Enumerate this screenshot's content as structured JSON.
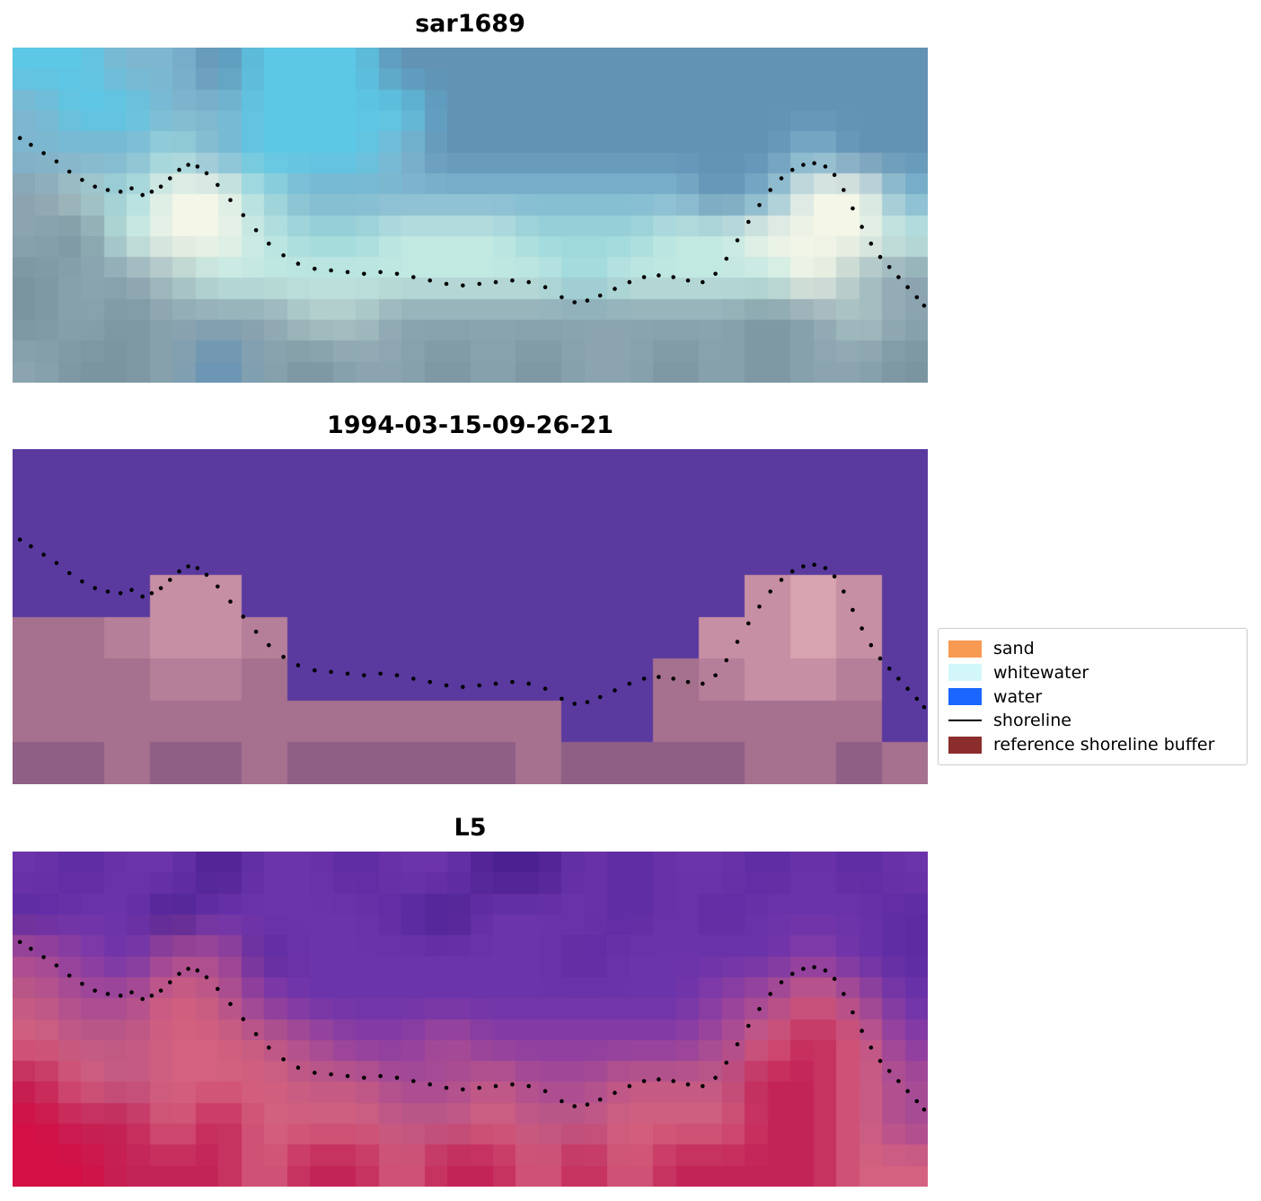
{
  "chart_data": [
    {
      "type": "heatmap",
      "title": "sar1689",
      "description": "SAR satellite image panel with dotted detected shoreline",
      "cols": 20,
      "rows": 8,
      "smooth": true,
      "palette": {
        "a": "#6292b4",
        "b": "#7fb6cf",
        "c": "#5cc8e6",
        "d": "#9ed8dc",
        "e": "#c2e8e2",
        "f": "#f4f6e8",
        "g": "#8ba4b0",
        "h": "#7a95a0",
        "i": "#adc6c6"
      },
      "pixels": [
        "ccbbacccaaaaaaaaaaaa",
        "bccbbccccaaaaaaaaaaa",
        "bbbdbcccbaaaaaaaabaa",
        "gidffdbbbbbbbbbabffb",
        "gheffeddeeedddeefffe",
        "hggieeeeeeeedeeeefig",
        "hghgggiigggggggghgig",
        "ghhgaghgghghgghghggh"
      ]
    },
    {
      "type": "heatmap",
      "title": "1994-03-15-09-26-21",
      "description": "Classified image panel: purple water above, mauve sand buffer below, dotted shoreline",
      "cols": 20,
      "rows": 8,
      "smooth": false,
      "palette": {
        "p": "#5a3a9f",
        "q": "#a5718f",
        "r": "#b57f9a",
        "s": "#c78fa3",
        "t": "#d7a3af",
        "u": "#8f5f86"
      },
      "pixels": [
        "pppppppppppppppppppp",
        "pppppppppppppppppppp",
        "pppppppppppppppppppp",
        "pppsspppppppppppstsp",
        "qqrssrpppppppppsstsp",
        "qqqrrqppppppppqrssrp",
        "qqqqqqqqqqqqppqqqqqp",
        "uuquuquuuuuquuuuqquq"
      ]
    },
    {
      "type": "heatmap",
      "title": "L5",
      "description": "Landsat 5 false-colour panel: purple water, red/pink land, dotted shoreline",
      "cols": 20,
      "rows": 8,
      "smooth": true,
      "palette": {
        "A": "#5e2ba2",
        "B": "#6c34ab",
        "C": "#4b2191",
        "D": "#8b3da4",
        "E": "#a74b95",
        "F": "#c05a84",
        "G": "#d4617f",
        "H": "#c32457",
        "I": "#d40f45"
      },
      "pixels": [
        "BABBCBBABBCCBABBABAB",
        "ABBCBBBBACBBBABABBBA",
        "EDBEEABBBBBBABBBBDBA",
        "FEEGFDBBBBBBBBBDEGEB",
        "GFFGGFEDDEDDDDDEGHGD",
        "HGFGGGFFEEFEEFFFHHGE",
        "IHHGHGGGFFGFFGGGHHGE",
        "IIHHHGHHGHHGHGHHHHGG"
      ]
    }
  ],
  "shoreline": {
    "color": "#000000",
    "dot_radius": 2.3,
    "points": [
      [
        0.008,
        0.27
      ],
      [
        0.02,
        0.29
      ],
      [
        0.034,
        0.315
      ],
      [
        0.048,
        0.34
      ],
      [
        0.062,
        0.37
      ],
      [
        0.076,
        0.395
      ],
      [
        0.09,
        0.415
      ],
      [
        0.104,
        0.425
      ],
      [
        0.118,
        0.43
      ],
      [
        0.13,
        0.42
      ],
      [
        0.142,
        0.44
      ],
      [
        0.152,
        0.43
      ],
      [
        0.162,
        0.415
      ],
      [
        0.172,
        0.39
      ],
      [
        0.182,
        0.365
      ],
      [
        0.192,
        0.35
      ],
      [
        0.202,
        0.355
      ],
      [
        0.212,
        0.375
      ],
      [
        0.224,
        0.41
      ],
      [
        0.238,
        0.455
      ],
      [
        0.252,
        0.5
      ],
      [
        0.266,
        0.545
      ],
      [
        0.28,
        0.585
      ],
      [
        0.296,
        0.62
      ],
      [
        0.312,
        0.645
      ],
      [
        0.33,
        0.66
      ],
      [
        0.348,
        0.665
      ],
      [
        0.366,
        0.67
      ],
      [
        0.384,
        0.675
      ],
      [
        0.402,
        0.67
      ],
      [
        0.42,
        0.675
      ],
      [
        0.438,
        0.685
      ],
      [
        0.456,
        0.695
      ],
      [
        0.474,
        0.705
      ],
      [
        0.492,
        0.71
      ],
      [
        0.51,
        0.705
      ],
      [
        0.528,
        0.7
      ],
      [
        0.546,
        0.695
      ],
      [
        0.564,
        0.7
      ],
      [
        0.582,
        0.715
      ],
      [
        0.6,
        0.745
      ],
      [
        0.614,
        0.76
      ],
      [
        0.628,
        0.755
      ],
      [
        0.642,
        0.74
      ],
      [
        0.658,
        0.72
      ],
      [
        0.674,
        0.7
      ],
      [
        0.69,
        0.685
      ],
      [
        0.706,
        0.68
      ],
      [
        0.722,
        0.685
      ],
      [
        0.738,
        0.695
      ],
      [
        0.754,
        0.7
      ],
      [
        0.768,
        0.675
      ],
      [
        0.78,
        0.63
      ],
      [
        0.792,
        0.575
      ],
      [
        0.804,
        0.52
      ],
      [
        0.816,
        0.47
      ],
      [
        0.828,
        0.425
      ],
      [
        0.84,
        0.39
      ],
      [
        0.852,
        0.365
      ],
      [
        0.864,
        0.35
      ],
      [
        0.876,
        0.345
      ],
      [
        0.888,
        0.355
      ],
      [
        0.898,
        0.38
      ],
      [
        0.908,
        0.425
      ],
      [
        0.918,
        0.48
      ],
      [
        0.928,
        0.535
      ],
      [
        0.938,
        0.585
      ],
      [
        0.948,
        0.625
      ],
      [
        0.958,
        0.655
      ],
      [
        0.968,
        0.685
      ],
      [
        0.978,
        0.715
      ],
      [
        0.988,
        0.745
      ],
      [
        0.996,
        0.77
      ]
    ]
  },
  "legend": {
    "items": [
      {
        "label": "sand",
        "type": "patch",
        "color": "#f79a52"
      },
      {
        "label": "whitewater",
        "type": "patch",
        "color": "#d3f6fa"
      },
      {
        "label": "water",
        "type": "patch",
        "color": "#1a66ff"
      },
      {
        "label": "shoreline",
        "type": "line",
        "color": "#000000"
      },
      {
        "label": "reference shoreline buffer",
        "type": "patch",
        "color": "#8c2d2d"
      }
    ]
  }
}
